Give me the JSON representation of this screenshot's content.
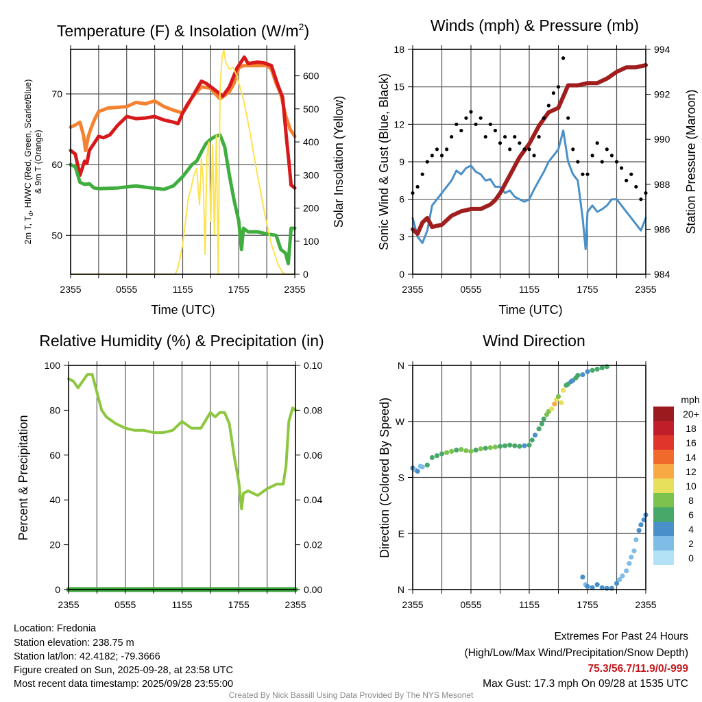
{
  "chart_data": [
    {
      "type": "line",
      "title": "Temperature (F) & Insolation (W/m",
      "title_sup": "2",
      "title_end": ")",
      "xlabel": "Time (UTC)",
      "ylabel_line1": "2m T, T",
      "ylabel_sub": "d",
      "ylabel_line1_end": ", HI/WC (Red, Green, Scarlet/Blue)",
      "ylabel_line2": "& 9m T (Orange)",
      "ylabel_right": "Solar Insolation (Yellow)",
      "xticks": [
        "2355",
        "0555",
        "1155",
        "1755",
        "2355"
      ],
      "yticks_left": [
        "50",
        "60",
        "70"
      ],
      "yticks_left_values": [
        50,
        60,
        70
      ],
      "yticks_right": [
        "0",
        "100",
        "200",
        "300",
        "400",
        "500",
        "600"
      ],
      "yticks_right_values": [
        0,
        100,
        200,
        300,
        400,
        500,
        600
      ],
      "ylim_left": [
        44.5,
        76.3
      ],
      "ylim_right": [
        0,
        680
      ],
      "xlim_hours": [
        0,
        24
      ],
      "series": [
        {
          "name": "9m T",
          "color": "#f58231",
          "axis": "left",
          "x": [
            0,
            0.5,
            1,
            1.4,
            1.6,
            1.9,
            2.2,
            2.6,
            3,
            4,
            5,
            6,
            7,
            8,
            9,
            10,
            11,
            12,
            12.5,
            13,
            14,
            15,
            15.5,
            16,
            16.5,
            17,
            17.5,
            18,
            18.5,
            19,
            20,
            21,
            21.5,
            22,
            22.5,
            23,
            23.5,
            24
          ],
          "y": [
            65.3,
            65.6,
            66,
            64,
            62,
            64,
            65.2,
            66.5,
            67.5,
            68,
            68.1,
            68.2,
            68.8,
            68.6,
            69,
            68.2,
            67.7,
            67.3,
            68.3,
            69.5,
            71,
            70.8,
            70,
            69.3,
            69.8,
            70.3,
            71.5,
            73.7,
            74,
            74,
            74,
            74,
            73.5,
            71.5,
            70,
            67,
            65,
            64
          ]
        },
        {
          "name": "2m T",
          "color": "#d7191c",
          "axis": "left",
          "x": [
            0,
            0.5,
            1,
            1.5,
            1.75,
            2,
            2.5,
            3,
            3.5,
            4.2,
            5,
            6,
            7,
            8,
            9,
            10,
            11,
            11.5,
            12,
            12.5,
            13,
            14,
            14.5,
            15.3,
            16,
            16.3,
            17,
            17.8,
            18.6,
            19,
            20,
            20.7,
            21.5,
            22.2,
            22.7,
            23.1,
            23.4,
            23.6,
            24
          ],
          "y": [
            62,
            61.5,
            58.5,
            60.5,
            60.2,
            62,
            63,
            64,
            63.8,
            64.2,
            65.5,
            66.8,
            66.5,
            66.6,
            66.8,
            66.3,
            66,
            65.8,
            67.3,
            68.5,
            69.5,
            71.8,
            71.5,
            70.7,
            70,
            69.7,
            71,
            73.6,
            75.2,
            74.3,
            74.5,
            74.4,
            74,
            71.2,
            69.5,
            63.9,
            60,
            57.1,
            56.7
          ]
        },
        {
          "name": "Td",
          "color": "#3fae3f",
          "axis": "left",
          "x": [
            0,
            0.5,
            1,
            1.5,
            2,
            2.5,
            3,
            5,
            7,
            8,
            10,
            11,
            12,
            13,
            13.5,
            14,
            14.5,
            15,
            15.5,
            16,
            16.5,
            17,
            17.5,
            18,
            18.3,
            18.5,
            19,
            20,
            21,
            22,
            22.5,
            23,
            23.3,
            23.6,
            24
          ],
          "y": [
            60,
            59.7,
            57.5,
            57.2,
            57.3,
            56.7,
            56.6,
            56.7,
            57,
            56.8,
            56.5,
            57,
            58.3,
            60,
            60.5,
            61.8,
            63,
            63.6,
            64,
            64.2,
            62.5,
            58.5,
            55,
            52,
            48,
            51,
            50.5,
            50.5,
            50.2,
            50,
            48,
            47.5,
            46,
            51,
            51
          ]
        },
        {
          "name": "Solar Insolation",
          "color": "#fde24f",
          "axis": "right",
          "x": [
            0,
            11.2,
            11.5,
            12,
            12.3,
            12.6,
            12.9,
            13.2,
            13.5,
            13.8,
            14,
            14.2,
            14.4,
            14.6,
            14.8,
            15,
            15.2,
            15.4,
            15.6,
            15.8,
            16,
            16.2,
            16.4,
            16.6,
            17,
            17.4,
            17.8,
            18.5,
            19.2,
            20,
            20.8,
            21.5,
            22.2,
            22.7,
            23,
            24
          ],
          "y": [
            0,
            0,
            20,
            90,
            160,
            230,
            260,
            300,
            320,
            210,
            350,
            280,
            60,
            360,
            400,
            160,
            390,
            120,
            420,
            0,
            560,
            650,
            680,
            640,
            620,
            625,
            600,
            530,
            430,
            300,
            180,
            90,
            30,
            5,
            0,
            0
          ]
        }
      ]
    },
    {
      "type": "line",
      "title": "Winds (mph) & Pressure (mb)",
      "xlabel": "Time (UTC)",
      "ylabel": "Sonic Wind & Gust (Blue, Black)",
      "ylabel_right": "Station Pressure (Maroon)",
      "xticks": [
        "2355",
        "0555",
        "1155",
        "1755",
        "2355"
      ],
      "yticks_left": [
        "0",
        "3",
        "6",
        "9",
        "12",
        "15",
        "18"
      ],
      "yticks_left_values": [
        0,
        3,
        6,
        9,
        12,
        15,
        18
      ],
      "yticks_right": [
        "984",
        "986",
        "988",
        "990",
        "992",
        "994"
      ],
      "yticks_right_values": [
        984,
        986,
        988,
        990,
        992,
        994
      ],
      "ylim_left": [
        0,
        18
      ],
      "ylim_right": [
        984,
        994
      ],
      "xlim_hours": [
        0,
        24
      ],
      "series": [
        {
          "name": "Sonic Wind",
          "color": "#4a90c8",
          "axis": "left",
          "x": [
            0,
            0.5,
            1,
            1.5,
            2,
            2.5,
            3,
            3.5,
            4,
            4.5,
            5,
            5.5,
            6,
            6.5,
            7,
            7.5,
            8,
            8.5,
            9,
            9.5,
            10,
            10.5,
            11,
            11.5,
            12,
            12.5,
            13,
            13.5,
            14,
            14.5,
            15,
            15.5,
            16,
            16.5,
            17,
            17.5,
            17.8,
            18,
            18.5,
            19,
            19.5,
            20,
            20.5,
            21,
            21.5,
            22,
            22.5,
            23,
            23.5,
            24
          ],
          "y": [
            4.5,
            3,
            2.5,
            3.5,
            5.5,
            6,
            6.5,
            7,
            7.5,
            8.3,
            8,
            8.5,
            8.7,
            8.2,
            8,
            7.5,
            7.6,
            7,
            7,
            6.5,
            6.7,
            6.2,
            6,
            5.8,
            6,
            6.8,
            7.5,
            8.2,
            9,
            9.5,
            10,
            11.5,
            9,
            8,
            7.5,
            4.5,
            2,
            5,
            5.5,
            5,
            5.2,
            5.5,
            6,
            6,
            5.5,
            5,
            4.5,
            4,
            3.5,
            4.5
          ]
        },
        {
          "name": "Station Pressure",
          "color": "#a01e1e",
          "axis": "right",
          "x": [
            0,
            0.5,
            1,
            1.5,
            2,
            3,
            4,
            5,
            6,
            7,
            8,
            8.5,
            9,
            10,
            11,
            12,
            13,
            14,
            15,
            15.5,
            16,
            17,
            18,
            19,
            20,
            21,
            22,
            23,
            24
          ],
          "y": [
            986,
            985.8,
            986.3,
            986.5,
            986.1,
            986.2,
            986.6,
            986.8,
            986.9,
            986.9,
            987.1,
            987.3,
            987.6,
            988.4,
            989.2,
            989.8,
            990.6,
            991.2,
            991.4,
            991.9,
            992.4,
            992.4,
            992.5,
            992.5,
            992.7,
            993,
            993.2,
            993.2,
            993.3
          ]
        }
      ],
      "gust": {
        "name": "Gust",
        "color": "#000000",
        "x": [
          0,
          0.5,
          1,
          1.5,
          2,
          2.5,
          3,
          3.5,
          4,
          4.5,
          5,
          5.5,
          6,
          6.5,
          7,
          7.5,
          8,
          8.5,
          9,
          9.5,
          10,
          10.5,
          11,
          11.5,
          12,
          12.5,
          13,
          13.5,
          14,
          14.5,
          15,
          15.5,
          16,
          16.5,
          17,
          17.5,
          18,
          18.5,
          19,
          19.5,
          20,
          20.5,
          21,
          21.5,
          22,
          22.5,
          23,
          23.5,
          24
        ],
        "y": [
          6.5,
          7,
          8,
          9,
          9.5,
          10,
          9.5,
          10,
          11,
          12,
          11.5,
          12.5,
          13,
          12,
          12.5,
          11,
          12,
          11.5,
          10.5,
          11,
          10,
          11,
          10.5,
          10,
          10,
          9.5,
          11,
          12.5,
          13.5,
          14.5,
          15,
          17.3,
          12.5,
          10,
          9,
          8,
          8,
          9.5,
          10.5,
          9,
          10,
          9.5,
          9,
          8.5,
          7.5,
          8,
          7,
          6,
          6.5
        ]
      }
    },
    {
      "type": "line",
      "title": "Relative Humidity (%) & Precipitation (in)",
      "ylabel": "Percent & Precipitation",
      "xticks": [
        "2355",
        "0555",
        "1155",
        "1755",
        "2355"
      ],
      "yticks_left": [
        "0",
        "20",
        "40",
        "60",
        "80",
        "100"
      ],
      "yticks_left_values": [
        0,
        20,
        40,
        60,
        80,
        100
      ],
      "yticks_right": [
        "0.00",
        "0.02",
        "0.04",
        "0.06",
        "0.08",
        "0.10"
      ],
      "yticks_right_values": [
        0,
        0.02,
        0.04,
        0.06,
        0.08,
        0.1
      ],
      "ylim_left": [
        0,
        100
      ],
      "ylim_right": [
        0,
        0.1
      ],
      "xlim_hours": [
        0,
        24
      ],
      "series": [
        {
          "name": "Relative Humidity",
          "color": "#8dc63f",
          "axis": "left",
          "x": [
            0,
            0.5,
            1,
            1.5,
            2,
            2.5,
            3,
            3.5,
            4,
            5,
            6,
            7,
            8,
            9,
            10,
            11,
            12,
            13,
            14,
            15,
            15.5,
            16,
            16.5,
            17,
            17.5,
            18,
            18.3,
            18.5,
            19,
            20,
            21,
            22,
            22.7,
            23,
            23.3,
            23.7,
            24
          ],
          "y": [
            94,
            93,
            90,
            93,
            96,
            96,
            88,
            80,
            77,
            74,
            72,
            71,
            71,
            70,
            70,
            71,
            75,
            72,
            72,
            79,
            77,
            79,
            79,
            74,
            60,
            48,
            36,
            43,
            44,
            42,
            45,
            47,
            47,
            55,
            75,
            81,
            80
          ]
        },
        {
          "name": "Precipitation",
          "color": "#3aa63a",
          "axis": "right",
          "x": [
            0,
            24
          ],
          "y": [
            0,
            0
          ]
        }
      ]
    },
    {
      "type": "scatter",
      "title": "Wind Direction",
      "ylabel": "Direction (Colored By Speed)",
      "xticks": [
        "2355",
        "0555",
        "1155",
        "1755",
        "2355"
      ],
      "yticks_left": [
        "N",
        "E",
        "S",
        "W",
        "N"
      ],
      "yticks_left_values": [
        0,
        90,
        180,
        270,
        360
      ],
      "ylim_left": [
        0,
        360
      ],
      "xlim_hours": [
        0,
        24
      ],
      "points": {
        "x": [
          0,
          0.3,
          0.5,
          0.8,
          1,
          1.5,
          2,
          2.5,
          3,
          3.5,
          4,
          4.5,
          5,
          5.5,
          6,
          6.5,
          7,
          7.5,
          8,
          8.5,
          9,
          9.5,
          10,
          10.5,
          11,
          11.5,
          12,
          12.3,
          12.6,
          13,
          13.3,
          13.5,
          13.8,
          14,
          14.3,
          14.6,
          14.8,
          15,
          15.3,
          15.5,
          15.8,
          16,
          16.3,
          16.5,
          16.8,
          17,
          17.5,
          18,
          18.5,
          19,
          19.5,
          20,
          17.5,
          17.8,
          18,
          18.5,
          19,
          19.5,
          20,
          20.5,
          21,
          21.3,
          21.6,
          22,
          22.3,
          22.5,
          22.8,
          23,
          23.3,
          23.5,
          23.8,
          24
        ],
        "y": [
          195,
          192,
          190,
          198,
          197,
          200,
          212,
          215,
          218,
          220,
          222,
          224,
          225,
          223,
          222,
          224,
          226,
          227,
          228,
          229,
          230,
          231,
          232,
          231,
          230,
          231,
          232,
          240,
          248,
          258,
          266,
          274,
          281,
          286,
          290,
          298,
          305,
          310,
          300,
          320,
          328,
          330,
          334,
          336,
          340,
          344,
          345,
          350,
          352,
          354,
          356,
          358,
          20,
          8,
          5,
          3,
          8,
          3,
          2,
          2,
          10,
          16,
          22,
          30,
          42,
          52,
          62,
          80,
          95,
          104,
          112,
          120
        ],
        "speed": [
          4,
          3,
          4,
          2,
          3,
          6,
          6,
          7,
          7,
          8,
          8,
          7,
          8,
          8,
          8,
          7,
          8,
          7,
          8,
          8,
          7,
          6,
          6,
          7,
          6,
          5,
          6,
          6,
          5,
          6,
          6,
          7,
          8,
          9,
          10,
          12,
          11,
          8,
          10,
          10,
          6,
          6,
          5,
          5,
          6,
          6,
          4,
          5,
          6,
          6,
          7,
          6,
          4,
          3,
          4,
          4,
          5,
          4,
          4,
          4,
          4,
          3,
          3,
          3,
          3,
          3,
          2,
          3,
          4,
          4,
          4,
          4
        ]
      },
      "legend": {
        "title": "mph",
        "labels": [
          "20+",
          "18",
          "16",
          "14",
          "12",
          "10",
          "8",
          "6",
          "4",
          "2",
          "0"
        ],
        "colors": [
          "#9b1a1e",
          "#c01f2a",
          "#e0352b",
          "#f06a2b",
          "#f8a944",
          "#e6e05a",
          "#7dc24e",
          "#48a86a",
          "#4a90c8",
          "#7fbce6",
          "#b3e2f7"
        ]
      }
    }
  ],
  "footer": {
    "location": "Location: Fredonia",
    "elevation": "Station elevation: 238.75 m",
    "latlon": "Station lat/lon: 42.4182; -79.3666",
    "created": "Figure created on Sun, 2025-09-28, at 23:58 UTC",
    "recent": "Most recent data timestamp: 2025/09/28 23:55:00",
    "extremes_title": "Extremes For Past 24 Hours",
    "extremes_fields": "(High/Low/Max Wind/Precipitation/Snow Depth)",
    "extremes_values": "75.3/56.7/11.9/0/-999",
    "max_gust": "Max Gust: 17.3 mph On 09/28 at 1535 UTC",
    "credit": "Created By Nick Bassill Using Data Provided By The NYS Mesonet"
  }
}
